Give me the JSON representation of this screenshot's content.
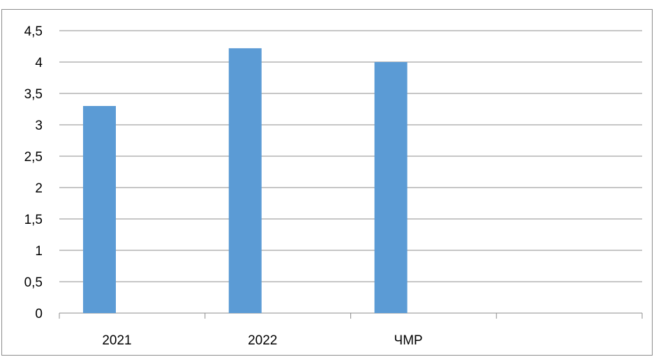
{
  "chart_data": {
    "type": "bar",
    "categories": [
      "2021",
      "2022",
      "ЧМР",
      ""
    ],
    "values": [
      3.3,
      4.22,
      4.0,
      null
    ],
    "ylim": [
      0,
      4.5
    ],
    "y_ticks": [
      "0",
      "0,5",
      "1",
      "1,5",
      "2",
      "2,5",
      "3",
      "3,5",
      "4",
      "4,5"
    ],
    "grid": true,
    "bar_color": "#5b9bd5",
    "title": "",
    "xlabel": "",
    "ylabel": ""
  }
}
